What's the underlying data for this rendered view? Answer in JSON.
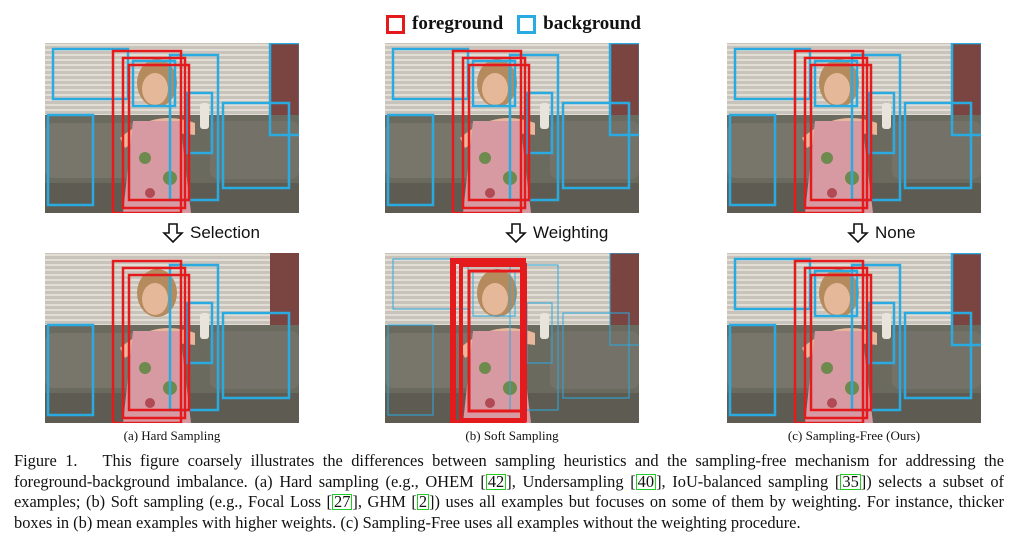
{
  "legend": {
    "foreground_label": "foreground",
    "background_label": "background",
    "foreground_color": "#e41a1c",
    "background_color": "#29abe2"
  },
  "operations": [
    {
      "label": "Selection",
      "icon": "down-arrow-icon"
    },
    {
      "label": "Weighting",
      "icon": "down-arrow-icon"
    },
    {
      "label": "None",
      "icon": "down-arrow-icon"
    }
  ],
  "subcaptions": [
    "(a) Hard Sampling",
    "(b) Soft Sampling",
    "(c) Sampling-Free (Ours)"
  ],
  "caption": {
    "prefix": "Figure 1.",
    "seg1": "This figure coarsely illustrates the differences between sampling heuristics and the sampling-free mechanism for addressing the foreground-background imbalance. (a) Hard sampling (e.g., OHEM [",
    "ref1": "42",
    "seg2": "], Undersampling [",
    "ref2": "40",
    "seg3": "], IoU-balanced sampling [",
    "ref3": "35",
    "seg4": "]) selects a subset of examples; (b) Soft sampling (e.g., Focal Loss [",
    "ref4": "27",
    "seg5": "], GHM [",
    "ref5": "2",
    "seg6": "]) uses all examples but focuses on some of them by weighting. For instance, thicker boxes in (b) mean examples with higher weights. (c) Sampling-Free uses all examples without the weighting procedure."
  }
}
